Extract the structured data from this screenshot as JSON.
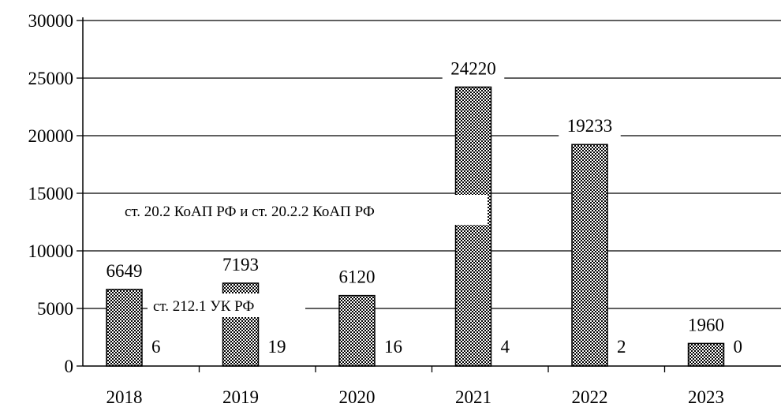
{
  "chart_data": {
    "type": "bar",
    "categories": [
      "2018",
      "2019",
      "2020",
      "2021",
      "2022",
      "2023"
    ],
    "series": [
      {
        "name": "ст. 20.2 КоАП РФ и ст. 20.2.2 КоАП РФ",
        "values": [
          6649,
          7193,
          6120,
          24220,
          19233,
          1960
        ],
        "fill_pattern": "checkered",
        "color": "#000000"
      },
      {
        "name": "ст. 212.1 УК РФ",
        "values": [
          6,
          19,
          16,
          4,
          2,
          0
        ],
        "color": "#000000"
      }
    ],
    "ylim": [
      0,
      30000
    ],
    "yticks": [
      "0",
      "5000",
      "10000",
      "15000",
      "20000",
      "25000",
      "30000"
    ],
    "grid": true,
    "title": "",
    "xlabel": "",
    "ylabel": "",
    "annotations": {
      "koap": "ст. 20.2 КоАП РФ и ст. 20.2.2 КоАП РФ",
      "uk": "ст. 212.1 УК РФ"
    }
  }
}
